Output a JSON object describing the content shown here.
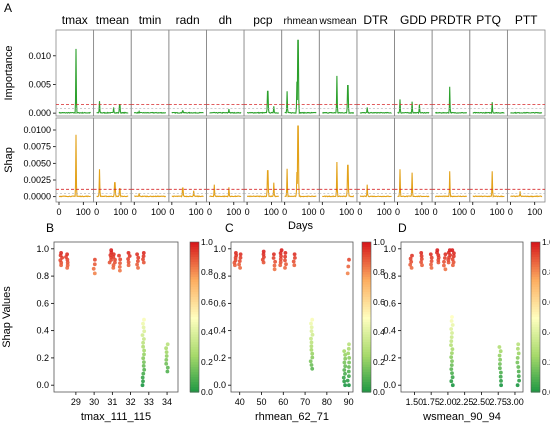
{
  "panel_letters": {
    "A": "A",
    "B": "B",
    "C": "C",
    "D": "D"
  },
  "colors": {
    "importance": "#2ca02c",
    "shap": "#e3a21a",
    "threshold": "#d62728",
    "colormap": [
      "#1a9641",
      "#a6d96a",
      "#ffffbf",
      "#fdae61",
      "#d7191c"
    ]
  },
  "chart_data": [
    {
      "type": "line",
      "panel": "A",
      "facets": [
        "tmax",
        "tmean",
        "tmin",
        "radn",
        "dh",
        "pcp",
        "rhmean",
        "wsmean",
        "DTR",
        "GDD",
        "PRDTR",
        "PTQ",
        "PTT"
      ],
      "xlabel": "Days",
      "xticks": [
        0,
        100
      ],
      "x_range": [
        0,
        130
      ],
      "rows": [
        {
          "ylabel": "Importance",
          "yticks": [
            "0.000",
            "0.005",
            "0.010"
          ],
          "ylim": [
            -0.0005,
            0.0145
          ],
          "threshold": 0.0015,
          "threshold2": 0.0008,
          "peaks": [
            [
              0,
              70,
              0.0112
            ],
            [
              1,
              12,
              0.0021
            ],
            [
              1,
              70,
              0.001
            ],
            [
              1,
              95,
              0.0015
            ],
            [
              2,
              20,
              0.0003
            ],
            [
              3,
              45,
              0.0004
            ],
            [
              4,
              80,
              0.0007
            ],
            [
              5,
              85,
              0.0038
            ],
            [
              5,
              110,
              0.0012
            ],
            [
              6,
              10,
              0.0038
            ],
            [
              6,
              50,
              0.0055
            ],
            [
              6,
              55,
              0.0127
            ],
            [
              7,
              60,
              0.0065
            ],
            [
              7,
              105,
              0.0048
            ],
            [
              8,
              30,
              0.001
            ],
            [
              9,
              10,
              0.0024
            ],
            [
              9,
              60,
              0.002
            ],
            [
              9,
              90,
              0.0015
            ],
            [
              10,
              60,
              0.0046
            ],
            [
              11,
              80,
              0.0019
            ]
          ]
        },
        {
          "ylabel": "Shap",
          "yticks": [
            "0.0000",
            "0.0025",
            "0.0050",
            "0.0075",
            "0.0100"
          ],
          "ylim": [
            -0.0008,
            0.0118
          ],
          "threshold": 0.0011,
          "threshold2": 0.0005,
          "peaks": [
            [
              0,
              70,
              0.0093
            ],
            [
              1,
              12,
              0.0041
            ],
            [
              1,
              75,
              0.0021
            ],
            [
              1,
              95,
              0.0012
            ],
            [
              2,
              20,
              0.0005
            ],
            [
              3,
              45,
              0.0013
            ],
            [
              3,
              90,
              0.0009
            ],
            [
              4,
              20,
              0.0018
            ],
            [
              4,
              80,
              0.0014
            ],
            [
              5,
              85,
              0.0039
            ],
            [
              5,
              110,
              0.0021
            ],
            [
              6,
              10,
              0.0042
            ],
            [
              6,
              50,
              0.0037
            ],
            [
              6,
              55,
              0.0106
            ],
            [
              7,
              60,
              0.0052
            ],
            [
              7,
              105,
              0.0047
            ],
            [
              8,
              30,
              0.0018
            ],
            [
              9,
              10,
              0.0041
            ],
            [
              9,
              60,
              0.0036
            ],
            [
              10,
              60,
              0.0038
            ],
            [
              11,
              80,
              0.0038
            ],
            [
              12,
              40,
              0.0008
            ]
          ]
        }
      ]
    },
    {
      "type": "scatter",
      "panel": "B",
      "xlabel": "tmax_111_115",
      "ylabel": "Shap Values",
      "xticks": [
        29,
        30,
        31,
        32,
        33,
        34
      ],
      "xlim": [
        27.8,
        34.6
      ],
      "ylim": [
        -0.05,
        1.05
      ],
      "yticks": [
        "0.0",
        "0.2",
        "0.4",
        "0.6",
        "0.8",
        "1.0"
      ],
      "colorbar_ticks": [
        "0.0",
        "0.2",
        "0.4",
        "0.6",
        "0.8",
        "1.0"
      ],
      "clusters": [
        {
          "x": 28.2,
          "y_min": 0.88,
          "y_max": 0.97,
          "n": 6
        },
        {
          "x": 28.5,
          "y_min": 0.86,
          "y_max": 0.96,
          "n": 6
        },
        {
          "x": 30.0,
          "y_min": 0.82,
          "y_max": 0.92,
          "n": 4
        },
        {
          "x": 30.9,
          "y_min": 0.9,
          "y_max": 0.99,
          "n": 6
        },
        {
          "x": 31.1,
          "y_min": 0.86,
          "y_max": 0.96,
          "n": 6
        },
        {
          "x": 31.4,
          "y_min": 0.84,
          "y_max": 0.95,
          "n": 5
        },
        {
          "x": 31.9,
          "y_min": 0.88,
          "y_max": 0.97,
          "n": 5
        },
        {
          "x": 32.4,
          "y_min": 0.86,
          "y_max": 0.96,
          "n": 5
        },
        {
          "x": 32.7,
          "y_min": 0.9,
          "y_max": 0.97,
          "n": 4
        },
        {
          "x": 32.7,
          "y_min": 0.0,
          "y_max": 0.48,
          "n": 18
        },
        {
          "x": 34.0,
          "y_min": 0.1,
          "y_max": 0.3,
          "n": 8
        }
      ]
    },
    {
      "type": "scatter",
      "panel": "C",
      "xlabel": "rhmean_62_71",
      "ylabel": "",
      "xticks": [
        40,
        50,
        60,
        70,
        80,
        90
      ],
      "xlim": [
        36,
        92
      ],
      "ylim": [
        -0.05,
        1.05
      ],
      "yticks": [
        "0.0",
        "0.2",
        "0.4",
        "0.6",
        "0.8",
        "1.0"
      ],
      "colorbar_ticks": [
        "0.0",
        "0.2",
        "0.4",
        "0.6",
        "0.8",
        "1.0"
      ],
      "clusters": [
        {
          "x": 38,
          "y_min": 0.88,
          "y_max": 0.97,
          "n": 6
        },
        {
          "x": 40,
          "y_min": 0.86,
          "y_max": 0.96,
          "n": 5
        },
        {
          "x": 51,
          "y_min": 0.9,
          "y_max": 0.98,
          "n": 5
        },
        {
          "x": 56,
          "y_min": 0.85,
          "y_max": 0.96,
          "n": 5
        },
        {
          "x": 59,
          "y_min": 0.88,
          "y_max": 0.99,
          "n": 6
        },
        {
          "x": 61,
          "y_min": 0.86,
          "y_max": 0.97,
          "n": 5
        },
        {
          "x": 65,
          "y_min": 0.88,
          "y_max": 0.96,
          "n": 4
        },
        {
          "x": 73,
          "y_min": 0.12,
          "y_max": 0.48,
          "n": 14
        },
        {
          "x": 88,
          "y_min": 0.0,
          "y_max": 0.25,
          "n": 10
        },
        {
          "x": 90,
          "y_min": 0.0,
          "y_max": 0.3,
          "n": 10
        },
        {
          "x": 90,
          "y_min": 0.82,
          "y_max": 0.92,
          "n": 3
        }
      ]
    },
    {
      "type": "scatter",
      "panel": "D",
      "xlabel": "wsmean_90_94",
      "ylabel": "",
      "xticks": [
        "1.50",
        "1.75",
        "2.00",
        "2.25",
        "2.50",
        "2.75",
        "3.00"
      ],
      "xlim": [
        1.3,
        3.12
      ],
      "ylim": [
        -0.05,
        1.05
      ],
      "yticks": [
        "0.0",
        "0.2",
        "0.4",
        "0.6",
        "0.8",
        "1.0"
      ],
      "colorbar_ticks": [
        "0.0",
        "0.2",
        "0.4",
        "0.6",
        "0.8",
        "1.0"
      ],
      "clusters": [
        {
          "x": 1.45,
          "y_min": 0.86,
          "y_max": 0.95,
          "n": 5
        },
        {
          "x": 1.6,
          "y_min": 0.88,
          "y_max": 0.97,
          "n": 5
        },
        {
          "x": 1.75,
          "y_min": 0.86,
          "y_max": 0.96,
          "n": 5
        },
        {
          "x": 1.85,
          "y_min": 0.9,
          "y_max": 0.99,
          "n": 6
        },
        {
          "x": 1.95,
          "y_min": 0.85,
          "y_max": 0.96,
          "n": 5
        },
        {
          "x": 2.02,
          "y_min": 0.9,
          "y_max": 0.99,
          "n": 6
        },
        {
          "x": 2.08,
          "y_min": 0.88,
          "y_max": 0.99,
          "n": 6
        },
        {
          "x": 2.06,
          "y_min": 0.0,
          "y_max": 0.5,
          "n": 18
        },
        {
          "x": 2.78,
          "y_min": 0.0,
          "y_max": 0.28,
          "n": 10
        },
        {
          "x": 3.05,
          "y_min": 0.0,
          "y_max": 0.3,
          "n": 10
        }
      ]
    }
  ]
}
